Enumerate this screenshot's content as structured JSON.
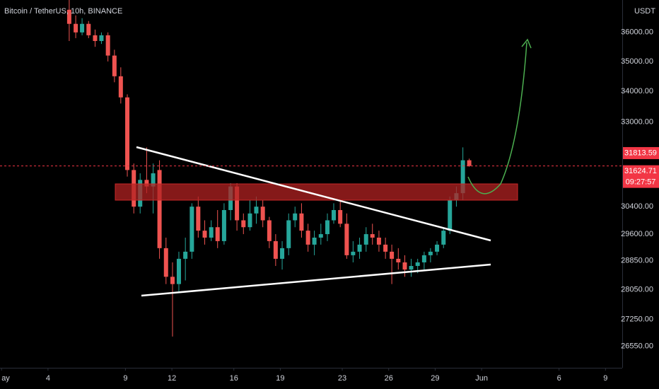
{
  "chart_data": {
    "type": "candlestick",
    "title": "Bitcoin / TetherUS, 10h, BINANCE",
    "y_axis_label": "USDT",
    "x": [
      5.37,
      5.79,
      6.2,
      6.62,
      7.04,
      7.45,
      7.87,
      8.29,
      8.7,
      9.12,
      9.54,
      9.95,
      10.37,
      10.79,
      11.2,
      11.62,
      12.04,
      12.45,
      12.87,
      13.29,
      13.7,
      14.12,
      14.54,
      14.95,
      15.37,
      15.79,
      16.2,
      16.62,
      17.04,
      17.45,
      17.87,
      18.29,
      18.7,
      19.12,
      19.54,
      19.95,
      20.37,
      20.79,
      21.2,
      21.62,
      22.04,
      22.45,
      22.87,
      23.29,
      23.7,
      24.12,
      24.54,
      24.95,
      25.37,
      25.79,
      26.2,
      26.62,
      27.04,
      27.45,
      27.87,
      28.29,
      28.7,
      29.12,
      29.54,
      29.95,
      30.37,
      30.79,
      31.2
    ],
    "open": [
      36800,
      36300,
      36000,
      36300,
      35900,
      35700,
      35900,
      35200,
      34500,
      33800,
      31500,
      30400,
      31200,
      31000,
      31500,
      29200,
      28400,
      28200,
      28900,
      29100,
      30400,
      29700,
      29500,
      29800,
      29400,
      30300,
      31000,
      30000,
      29800,
      30200,
      30400,
      30000,
      29400,
      28900,
      29200,
      30000,
      30200,
      29700,
      29300,
      29500,
      29600,
      30000,
      30300,
      29900,
      29000,
      29100,
      29300,
      29600,
      29500,
      29300,
      29100,
      28900,
      28800,
      28600,
      28700,
      28800,
      29000,
      29100,
      29300,
      29700,
      30600,
      30800,
      31800
    ],
    "high": [
      37150,
      36600,
      36500,
      36400,
      36100,
      36000,
      36000,
      35400,
      34800,
      33900,
      31700,
      31400,
      32200,
      31700,
      31800,
      29500,
      28800,
      29100,
      29500,
      30500,
      30700,
      30000,
      30000,
      30300,
      30500,
      31100,
      31100,
      30200,
      30600,
      30700,
      30600,
      30100,
      29600,
      29400,
      30200,
      30400,
      30500,
      29900,
      29700,
      29900,
      30200,
      30500,
      30600,
      30200,
      29400,
      29500,
      29800,
      29900,
      29700,
      29500,
      29300,
      29200,
      29000,
      28900,
      28900,
      29100,
      29200,
      29400,
      29800,
      30700,
      31000,
      32200,
      31850
    ],
    "low": [
      35700,
      35800,
      35900,
      35800,
      35500,
      35600,
      35000,
      34300,
      33600,
      31300,
      30200,
      30200,
      30800,
      30200,
      28900,
      28200,
      26800,
      28000,
      28300,
      28900,
      29500,
      29300,
      29400,
      29200,
      29300,
      30000,
      29700,
      29600,
      29700,
      29900,
      29800,
      29200,
      28700,
      28600,
      29000,
      29800,
      29500,
      29100,
      29000,
      29300,
      29400,
      29900,
      29800,
      28900,
      28800,
      28900,
      29100,
      29300,
      29100,
      28900,
      28200,
      28600,
      28400,
      28400,
      28500,
      28600,
      28800,
      29000,
      29200,
      29600,
      30400,
      30600,
      31600
    ],
    "close": [
      36300,
      36000,
      36300,
      35900,
      35700,
      35900,
      35200,
      34500,
      33800,
      31500,
      30400,
      31200,
      31000,
      31400,
      29200,
      28400,
      28200,
      28900,
      29100,
      30400,
      29700,
      29500,
      29800,
      29400,
      30300,
      31000,
      30000,
      29800,
      30200,
      30400,
      30000,
      29400,
      28900,
      29200,
      30000,
      30200,
      29700,
      29300,
      29500,
      29600,
      30000,
      30300,
      29900,
      29000,
      29100,
      29300,
      29600,
      29500,
      29300,
      29100,
      28900,
      28800,
      28600,
      28700,
      28800,
      29000,
      29100,
      29300,
      29700,
      30600,
      30800,
      31800,
      31624.71
    ],
    "up_color": "#26a69a",
    "down_color": "#ef5350",
    "log_scale": true,
    "ylim": [
      26000,
      37150
    ],
    "yticks": [
      {
        "value": 26550,
        "label": "26550.00"
      },
      {
        "value": 27250,
        "label": "27250.00"
      },
      {
        "value": 28050,
        "label": "28050.00"
      },
      {
        "value": 28850,
        "label": "28850.00"
      },
      {
        "value": 29600,
        "label": "29600.00"
      },
      {
        "value": 30400,
        "label": "30400.00"
      },
      {
        "value": 33000,
        "label": "33000.00"
      },
      {
        "value": 34000,
        "label": "34000.00"
      },
      {
        "value": 35000,
        "label": "35000.00"
      },
      {
        "value": 36000,
        "label": "36000.00"
      }
    ],
    "xlim": [
      0.9,
      41.08
    ],
    "xticks": [
      {
        "value": 1,
        "label": "ay"
      },
      4,
      9,
      12,
      16,
      19,
      23,
      26,
      29,
      {
        "value": 32,
        "label": "Jun"
      },
      {
        "value": 37,
        "label": "6"
      },
      {
        "value": 40,
        "label": "9"
      }
    ],
    "high_price": 31813.59,
    "last_price": 31624.71,
    "countdown": "09:27:57",
    "label_color": "#f23645"
  }
}
